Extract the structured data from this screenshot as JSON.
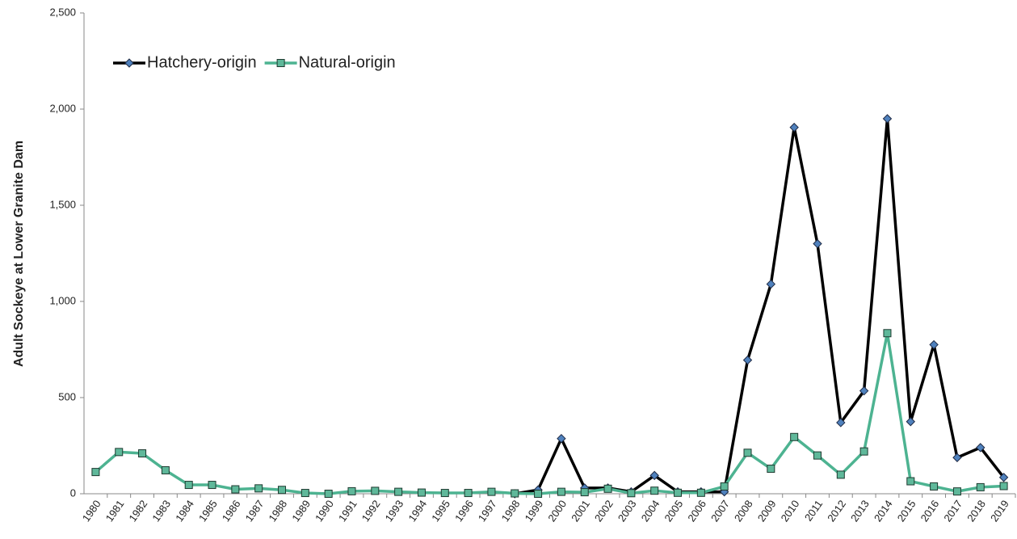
{
  "chart_data": {
    "type": "line",
    "y_label": "Adult Sockeye at Lower Granite Dam",
    "categories": [
      "1980",
      "1981",
      "1982",
      "1983",
      "1984",
      "1985",
      "1986",
      "1987",
      "1988",
      "1989",
      "1990",
      "1991",
      "1992",
      "1993",
      "1994",
      "1995",
      "1996",
      "1997",
      "1998",
      "1999",
      "2000",
      "2001",
      "2002",
      "2003",
      "2004",
      "2005",
      "2006",
      "2007",
      "2008",
      "2009",
      "2010",
      "2011",
      "2012",
      "2013",
      "2014",
      "2015",
      "2016",
      "2017",
      "2018",
      "2019"
    ],
    "series": [
      {
        "name": "Hatchery-origin",
        "color": "#000000",
        "marker": "diamond",
        "marker_color": "#4f81bd",
        "values": [
          null,
          null,
          null,
          null,
          null,
          null,
          null,
          null,
          null,
          null,
          null,
          null,
          null,
          null,
          null,
          null,
          null,
          null,
          0,
          20,
          287,
          30,
          30,
          10,
          95,
          10,
          10,
          10,
          695,
          1090,
          1905,
          1300,
          370,
          535,
          1950,
          375,
          775,
          188,
          240,
          85
        ]
      },
      {
        "name": "Natural-origin",
        "color": "#4db391",
        "marker": "square",
        "marker_color": "#5fb89a",
        "values": [
          113,
          217,
          210,
          122,
          46,
          46,
          23,
          28,
          20,
          4,
          0,
          13,
          15,
          10,
          6,
          4,
          4,
          10,
          2,
          0,
          10,
          8,
          26,
          3,
          16,
          5,
          5,
          38,
          213,
          130,
          295,
          199,
          99,
          220,
          835,
          65,
          38,
          12,
          34,
          40
        ]
      }
    ],
    "ylim": [
      0,
      2500
    ],
    "yticks": [
      0,
      500,
      {
        "value": 1000,
        "label": "1,000"
      },
      {
        "value": 1500,
        "label": "1,500"
      },
      {
        "value": 2000,
        "label": "2,000"
      },
      {
        "value": 2500,
        "label": "2,500"
      }
    ],
    "legend": "top-left",
    "grid": false
  }
}
